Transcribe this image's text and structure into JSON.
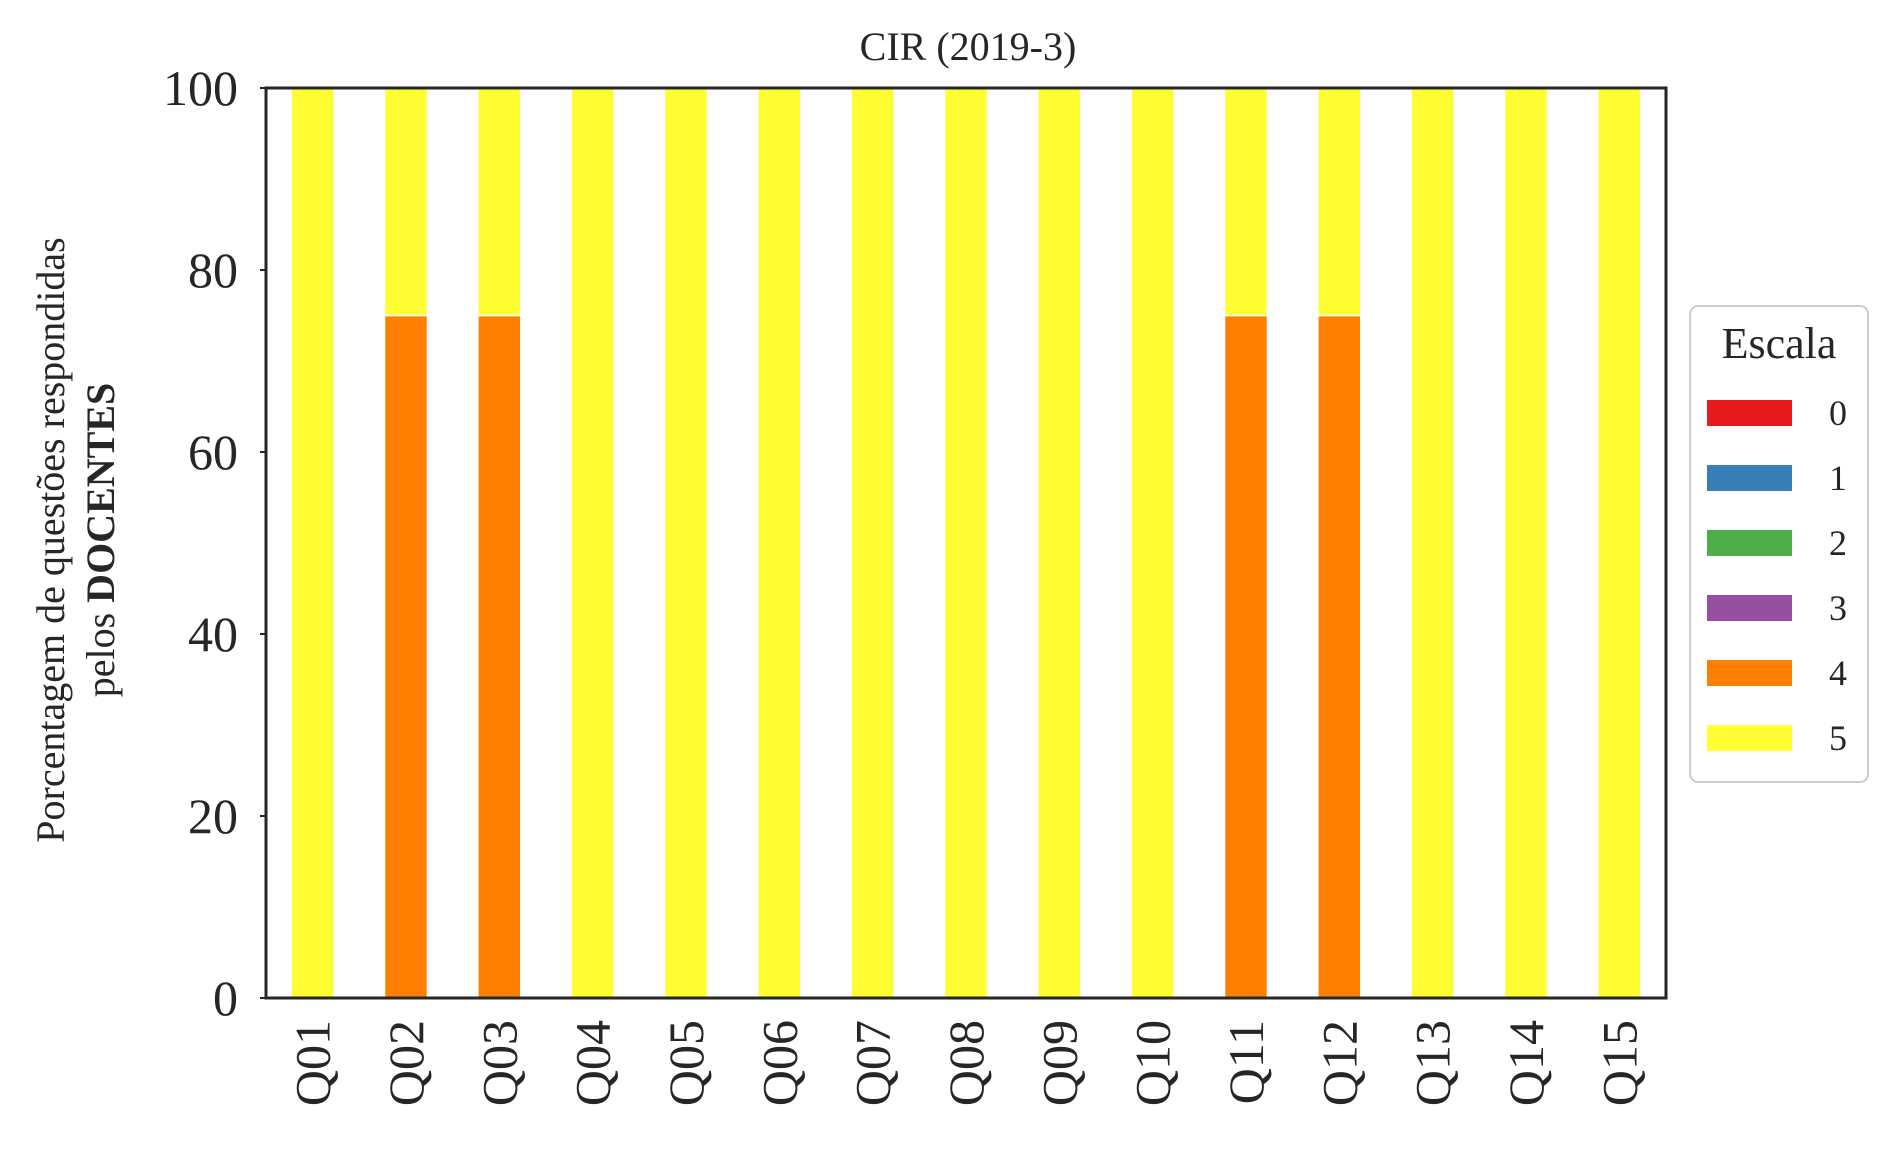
{
  "chart_data": {
    "type": "bar",
    "stacked": true,
    "title": "CIR (2019-3)",
    "ylabel_line1": "Porcentagem de questões respondidas",
    "ylabel_line2_prefix": "pelos ",
    "ylabel_line2_bold": "DOCENTES",
    "xlabel": "",
    "ylim": [
      0,
      100
    ],
    "yticks": [
      "0",
      "20",
      "40",
      "60",
      "80",
      "100"
    ],
    "categories": [
      "Q01",
      "Q02",
      "Q03",
      "Q04",
      "Q05",
      "Q06",
      "Q07",
      "Q08",
      "Q09",
      "Q10",
      "Q11",
      "Q12",
      "Q13",
      "Q14",
      "Q15"
    ],
    "series": [
      {
        "name": "0",
        "color": "#e41a1c",
        "values": [
          0,
          0,
          0,
          0,
          0,
          0,
          0,
          0,
          0,
          0,
          0,
          0,
          0,
          0,
          0
        ]
      },
      {
        "name": "1",
        "color": "#377eb8",
        "values": [
          0,
          0,
          0,
          0,
          0,
          0,
          0,
          0,
          0,
          0,
          0,
          0,
          0,
          0,
          0
        ]
      },
      {
        "name": "2",
        "color": "#4daf4a",
        "values": [
          0,
          0,
          0,
          0,
          0,
          0,
          0,
          0,
          0,
          0,
          0,
          0,
          0,
          0,
          0
        ]
      },
      {
        "name": "3",
        "color": "#984ea3",
        "values": [
          0,
          0,
          0,
          0,
          0,
          0,
          0,
          0,
          0,
          0,
          0,
          0,
          0,
          0,
          0
        ]
      },
      {
        "name": "4",
        "color": "#ff7f00",
        "values": [
          0,
          75,
          75,
          0,
          0,
          0,
          0,
          0,
          0,
          0,
          75,
          75,
          0,
          0,
          0
        ]
      },
      {
        "name": "5",
        "color": "#ffff33",
        "values": [
          100,
          25,
          25,
          100,
          100,
          100,
          100,
          100,
          100,
          100,
          25,
          25,
          100,
          100,
          100
        ]
      }
    ],
    "legend": {
      "title": "Escala",
      "placement": "center-right"
    },
    "grid": false
  }
}
